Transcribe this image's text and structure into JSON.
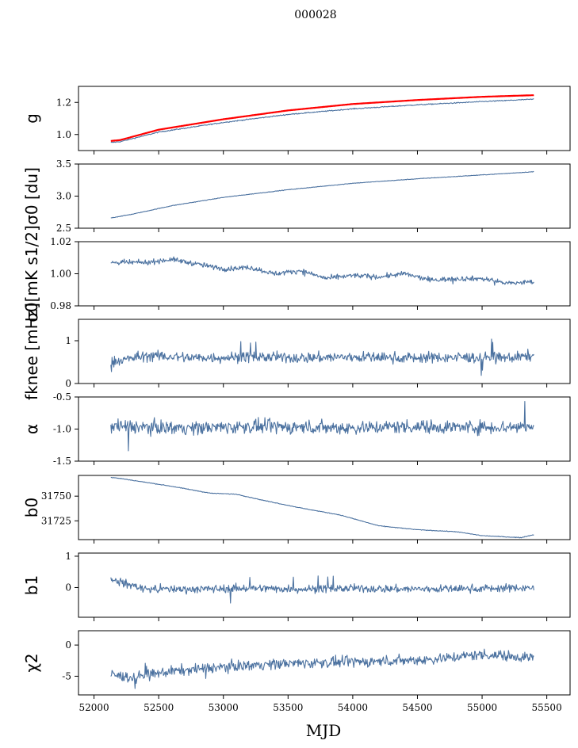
{
  "title": "000028",
  "xlabel": "MJD",
  "x_ticks": [
    "52000",
    "52500",
    "53000",
    "53500",
    "54000",
    "54500",
    "55000",
    "55500"
  ],
  "colors": {
    "series": "#4c72a0",
    "overlay": "#ff0000"
  },
  "chart_data": [
    {
      "type": "line",
      "ylabel": "g",
      "xlim": [
        51880,
        55680
      ],
      "ylim": [
        0.9,
        1.3
      ],
      "yticks": [
        "1.0",
        "1.2"
      ],
      "ytick_values": [
        1.0,
        1.2
      ],
      "x": [
        52130,
        52200,
        52500,
        53000,
        53500,
        54000,
        54500,
        55000,
        55400
      ],
      "series": [
        {
          "role": "main",
          "values": [
            0.95,
            0.955,
            1.015,
            1.075,
            1.125,
            1.16,
            1.185,
            1.205,
            1.22
          ]
        },
        {
          "role": "overlay",
          "values": [
            0.96,
            0.965,
            1.03,
            1.095,
            1.15,
            1.19,
            1.215,
            1.235,
            1.245
          ]
        }
      ]
    },
    {
      "type": "line",
      "ylabel": "σ0 [du]",
      "xlim": [
        51880,
        55680
      ],
      "ylim": [
        2.5,
        3.5
      ],
      "yticks": [
        "2.5",
        "3.0",
        "3.5"
      ],
      "ytick_values": [
        2.5,
        3.0,
        3.5
      ],
      "x": [
        52130,
        52300,
        52600,
        53000,
        53500,
        54000,
        54500,
        55000,
        55400
      ],
      "series": [
        {
          "values": [
            2.66,
            2.72,
            2.85,
            2.98,
            3.1,
            3.2,
            3.27,
            3.33,
            3.38
          ]
        }
      ]
    },
    {
      "type": "line",
      "ylabel": "σ0[mK s1/2]",
      "xlim": [
        51880,
        55680
      ],
      "ylim": [
        0.98,
        1.02
      ],
      "yticks": [
        "0.98",
        "1.00",
        "1.02"
      ],
      "ytick_values": [
        0.98,
        1.0,
        1.02
      ],
      "x": [
        52130,
        52400,
        52600,
        52800,
        53000,
        53200,
        53400,
        53600,
        53800,
        54000,
        54200,
        54400,
        54600,
        54800,
        55000,
        55200,
        55400
      ],
      "series": [
        {
          "values": [
            1.007,
            1.007,
            1.009,
            1.006,
            1.003,
            1.004,
            1.0,
            1.002,
            0.997,
            0.999,
            0.998,
            1.0,
            0.996,
            0.997,
            0.997,
            0.994,
            0.995
          ]
        }
      ]
    },
    {
      "type": "line",
      "ylabel": "fknee [mHz]",
      "xlim": [
        51880,
        55680
      ],
      "ylim": [
        0,
        1.5
      ],
      "yticks": [
        "0",
        "1"
      ],
      "ytick_values": [
        0,
        1
      ],
      "x": [
        52130,
        52400,
        52800,
        53200,
        53600,
        54000,
        54400,
        54800,
        55200,
        55400
      ],
      "series": [
        {
          "values": [
            0.5,
            0.65,
            0.6,
            0.62,
            0.6,
            0.62,
            0.6,
            0.61,
            0.6,
            0.65
          ]
        }
      ]
    },
    {
      "type": "line",
      "ylabel": "α",
      "xlim": [
        51880,
        55680
      ],
      "ylim": [
        -1.5,
        -0.5
      ],
      "yticks": [
        "-1.5",
        "-1.0",
        "-0.5"
      ],
      "ytick_values": [
        -1.5,
        -1.0,
        -0.5
      ],
      "x": [
        52130,
        52400,
        52800,
        53200,
        53600,
        54000,
        54400,
        54800,
        55200,
        55400
      ],
      "series": [
        {
          "values": [
            -0.95,
            -0.97,
            -0.98,
            -0.96,
            -0.97,
            -0.98,
            -0.96,
            -0.97,
            -0.97,
            -0.95
          ]
        }
      ]
    },
    {
      "type": "line",
      "ylabel": "b0",
      "xlim": [
        51880,
        55680
      ],
      "ylim": [
        31706,
        31771
      ],
      "yticks": [
        "31725",
        "31750"
      ],
      "ytick_values": [
        31725,
        31750
      ],
      "x": [
        52130,
        52200,
        52400,
        52600,
        52900,
        53100,
        53300,
        53600,
        53900,
        54200,
        54500,
        54800,
        55000,
        55150,
        55300,
        55400
      ],
      "series": [
        {
          "values": [
            31769,
            31768,
            31764,
            31760,
            31753,
            31752,
            31746,
            31738,
            31731,
            31720,
            31716,
            31714,
            31710,
            31709,
            31708,
            31711
          ]
        }
      ]
    },
    {
      "type": "line",
      "ylabel": "b1",
      "xlim": [
        51880,
        55680
      ],
      "ylim": [
        -0.95,
        1.1
      ],
      "yticks": [
        "0",
        "1"
      ],
      "ytick_values": [
        0,
        1
      ],
      "x": [
        52130,
        52400,
        52800,
        53200,
        53600,
        54000,
        54400,
        54800,
        55200,
        55400
      ],
      "series": [
        {
          "values": [
            0.25,
            -0.05,
            -0.05,
            -0.02,
            -0.05,
            -0.03,
            -0.05,
            -0.04,
            -0.02,
            0.0
          ]
        }
      ]
    },
    {
      "type": "line",
      "ylabel": "χ2",
      "xlim": [
        51880,
        55680
      ],
      "ylim": [
        -8,
        2.3
      ],
      "yticks": [
        "-5",
        "0"
      ],
      "ytick_values": [
        -5,
        0
      ],
      "x": [
        52130,
        52300,
        52600,
        53000,
        53400,
        53800,
        54200,
        54600,
        55000,
        55400
      ],
      "series": [
        {
          "values": [
            -4.8,
            -5.2,
            -4.2,
            -3.5,
            -3.0,
            -2.8,
            -2.6,
            -2.3,
            -1.5,
            -2.0
          ]
        }
      ]
    }
  ]
}
